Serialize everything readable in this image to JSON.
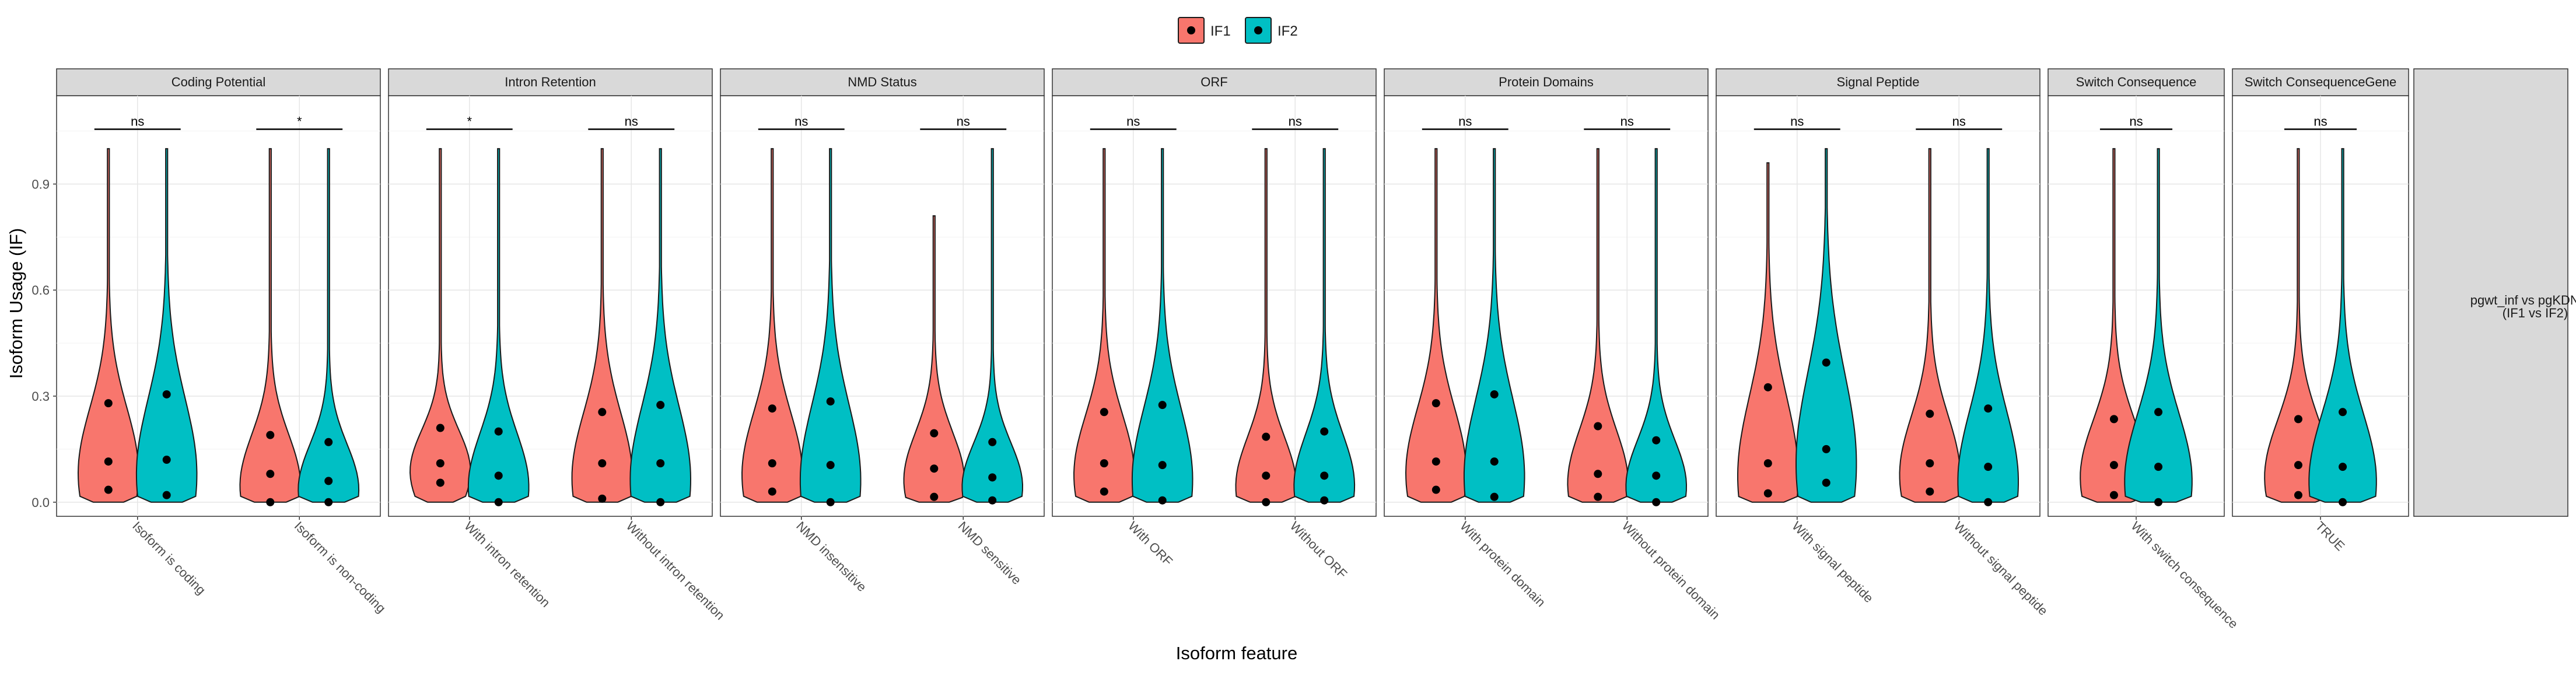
{
  "chart_data": {
    "type": "violin",
    "ylabel": "Isoform Usage (IF)",
    "xlabel": "Isoform feature",
    "ylim": [
      -0.04,
      1.15
    ],
    "yticks": [
      0.0,
      0.3,
      0.6,
      0.9
    ],
    "ytick_labels": [
      "0.0",
      "0.3",
      "0.6",
      "0.9"
    ],
    "grid": true,
    "legend": {
      "position": "top-center",
      "entries": [
        {
          "name": "IF1",
          "color": "#F8766D"
        },
        {
          "name": "IF2",
          "color": "#00BFC4"
        }
      ]
    },
    "strip_right": {
      "line1": "pgwt_inf vs pgKDN_inf",
      "line2": "(IF1 vs IF2)"
    },
    "facets": [
      {
        "title": "Coding Potential",
        "categories": [
          {
            "label": "Isoform is coding",
            "sig": "ns",
            "if1": {
              "max": 1.0,
              "q1": 0.035,
              "median": 0.115,
              "q3": 0.28
            },
            "if2": {
              "max": 1.0,
              "q1": 0.02,
              "median": 0.12,
              "q3": 0.305
            }
          },
          {
            "label": "Isoform is non-coding",
            "sig": "*",
            "if1": {
              "max": 1.0,
              "q1": 0.0,
              "median": 0.08,
              "q3": 0.19
            },
            "if2": {
              "max": 1.0,
              "q1": 0.0,
              "median": 0.06,
              "q3": 0.17
            }
          }
        ]
      },
      {
        "title": "Intron Retention",
        "categories": [
          {
            "label": "With intron retention",
            "sig": "*",
            "if1": {
              "max": 1.0,
              "q1": 0.055,
              "median": 0.11,
              "q3": 0.21
            },
            "if2": {
              "max": 1.0,
              "q1": 0.0,
              "median": 0.075,
              "q3": 0.2
            }
          },
          {
            "label": "Without intron retention",
            "sig": "ns",
            "if1": {
              "max": 1.0,
              "q1": 0.01,
              "median": 0.11,
              "q3": 0.255
            },
            "if2": {
              "max": 1.0,
              "q1": 0.0,
              "median": 0.11,
              "q3": 0.275
            }
          }
        ]
      },
      {
        "title": "NMD Status",
        "categories": [
          {
            "label": "NMD insensitive",
            "sig": "ns",
            "if1": {
              "max": 1.0,
              "q1": 0.03,
              "median": 0.11,
              "q3": 0.265
            },
            "if2": {
              "max": 1.0,
              "q1": 0.0,
              "median": 0.105,
              "q3": 0.285
            }
          },
          {
            "label": "NMD sensitive",
            "sig": "ns",
            "if1": {
              "max": 0.81,
              "q1": 0.015,
              "median": 0.095,
              "q3": 0.195
            },
            "if2": {
              "max": 1.0,
              "q1": 0.005,
              "median": 0.07,
              "q3": 0.17
            }
          }
        ]
      },
      {
        "title": "ORF",
        "categories": [
          {
            "label": "With ORF",
            "sig": "ns",
            "if1": {
              "max": 1.0,
              "q1": 0.03,
              "median": 0.11,
              "q3": 0.255
            },
            "if2": {
              "max": 1.0,
              "q1": 0.005,
              "median": 0.105,
              "q3": 0.275
            }
          },
          {
            "label": "Without ORF",
            "sig": "ns",
            "if1": {
              "max": 1.0,
              "q1": 0.0,
              "median": 0.075,
              "q3": 0.185
            },
            "if2": {
              "max": 1.0,
              "q1": 0.005,
              "median": 0.075,
              "q3": 0.2
            }
          }
        ]
      },
      {
        "title": "Protein Domains",
        "categories": [
          {
            "label": "With protein domain",
            "sig": "ns",
            "if1": {
              "max": 1.0,
              "q1": 0.035,
              "median": 0.115,
              "q3": 0.28
            },
            "if2": {
              "max": 1.0,
              "q1": 0.015,
              "median": 0.115,
              "q3": 0.305
            }
          },
          {
            "label": "Without protein domain",
            "sig": "ns",
            "if1": {
              "max": 1.0,
              "q1": 0.015,
              "median": 0.08,
              "q3": 0.215
            },
            "if2": {
              "max": 1.0,
              "q1": 0.0,
              "median": 0.075,
              "q3": 0.175
            }
          }
        ]
      },
      {
        "title": "Signal Peptide",
        "categories": [
          {
            "label": "With signal peptide",
            "sig": "ns",
            "if1": {
              "max": 0.96,
              "q1": 0.025,
              "median": 0.11,
              "q3": 0.325
            },
            "if2": {
              "max": 1.0,
              "q1": 0.055,
              "median": 0.15,
              "q3": 0.395
            }
          },
          {
            "label": "Without signal peptide",
            "sig": "ns",
            "if1": {
              "max": 1.0,
              "q1": 0.03,
              "median": 0.11,
              "q3": 0.25
            },
            "if2": {
              "max": 1.0,
              "q1": 0.0,
              "median": 0.1,
              "q3": 0.265
            }
          }
        ]
      },
      {
        "title": "Switch Consequence",
        "categories": [
          {
            "label": "With switch consequence",
            "sig": "ns",
            "if1": {
              "max": 1.0,
              "q1": 0.02,
              "median": 0.105,
              "q3": 0.235
            },
            "if2": {
              "max": 1.0,
              "q1": 0.0,
              "median": 0.1,
              "q3": 0.255
            }
          }
        ]
      },
      {
        "title": "Switch ConsequenceGene",
        "categories": [
          {
            "label": "TRUE",
            "sig": "ns",
            "if1": {
              "max": 1.0,
              "q1": 0.02,
              "median": 0.105,
              "q3": 0.235
            },
            "if2": {
              "max": 1.0,
              "q1": 0.0,
              "median": 0.1,
              "q3": 0.255
            }
          }
        ]
      }
    ]
  }
}
